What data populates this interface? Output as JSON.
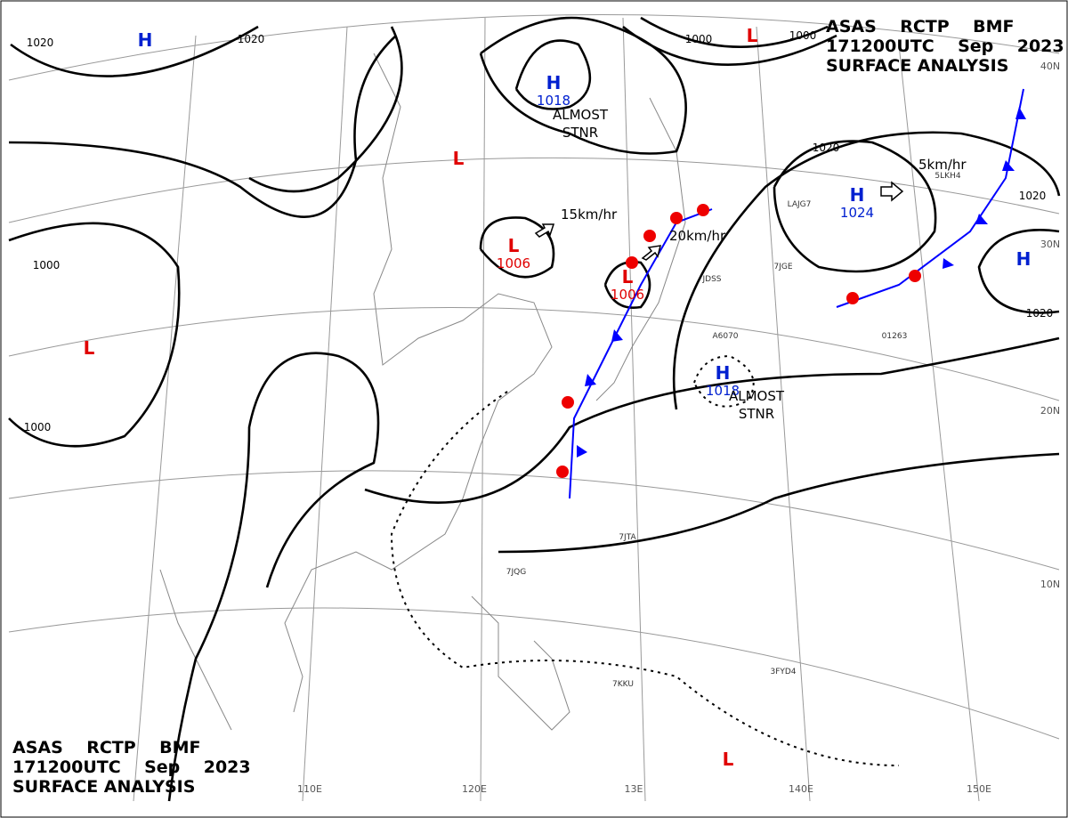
{
  "header": {
    "lines": [
      "ASAS    RCTP    BMF",
      "171200UTC    Sep    2023",
      "SURFACE ANALYSIS"
    ]
  },
  "pressure_centers": [
    {
      "symbol": "H",
      "pressure": 1018,
      "note": [
        "ALMOST",
        "STNR"
      ]
    },
    {
      "symbol": "L",
      "pressure": 1006
    },
    {
      "symbol": "L",
      "pressure": 1006
    },
    {
      "symbol": "H",
      "pressure": 1024
    },
    {
      "symbol": "H",
      "pressure": 1018,
      "note": [
        "ALMOST",
        "STNR"
      ]
    },
    {
      "symbol": "H"
    },
    {
      "symbol": "L"
    },
    {
      "symbol": "L"
    },
    {
      "symbol": "H"
    },
    {
      "symbol": "L"
    },
    {
      "symbol": "L"
    }
  ],
  "motion_labels": [
    "15km/hr",
    "20km/hr",
    "5km/hr"
  ],
  "isobar_labels": [
    "1020",
    "1020",
    "1000",
    "1000",
    "1020",
    "1020",
    "1020",
    "1000",
    "1000"
  ],
  "latitude_labels": [
    "40N",
    "30N",
    "20N",
    "10N"
  ],
  "longitude_labels": [
    "110E",
    "120E",
    "13E",
    "140E",
    "150E"
  ],
  "ship_ids": [
    "LAJG7",
    "7JGE",
    "JDSS",
    "A6070",
    "5LKH4",
    "01263",
    "7JQG",
    "7JTA",
    "3FYD4",
    "7KKU"
  ]
}
